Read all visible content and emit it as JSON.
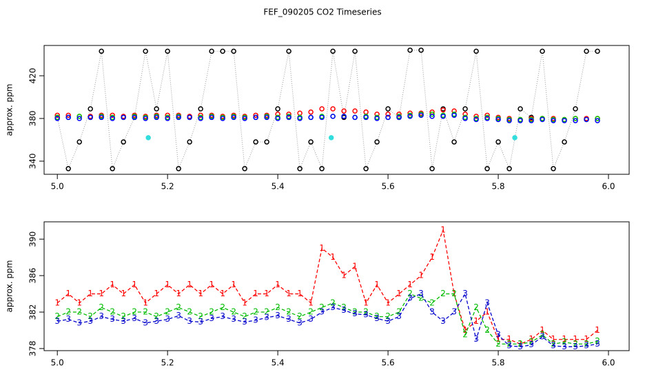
{
  "title": "FEF_090205  CO2 Timeseries",
  "chart_data": [
    {
      "type": "scatter",
      "ylabel": "approx. ppm",
      "x": [
        5.0,
        5.02,
        5.04,
        5.06,
        5.08,
        5.1,
        5.12,
        5.14,
        5.16,
        5.18,
        5.2,
        5.22,
        5.24,
        5.26,
        5.28,
        5.3,
        5.32,
        5.34,
        5.36,
        5.38,
        5.4,
        5.42,
        5.44,
        5.46,
        5.48,
        5.5,
        5.52,
        5.54,
        5.56,
        5.58,
        5.6,
        5.62,
        5.64,
        5.66,
        5.68,
        5.7,
        5.72,
        5.74,
        5.76,
        5.78,
        5.8,
        5.82,
        5.84,
        5.86,
        5.88,
        5.9,
        5.92,
        5.94,
        5.96,
        5.98
      ],
      "xlim": [
        4.976,
        6.0375
      ],
      "xticks": [
        {
          "value": 5,
          "label": "5.0"
        },
        5.2,
        5.4,
        5.6,
        5.8,
        {
          "value": 6,
          "label": "6.0"
        }
      ],
      "ylim": [
        327.7,
        448.4
      ],
      "yticks": [
        340,
        380,
        420
      ],
      "series": [
        {
          "color": "#000000",
          "connect": true,
          "values": [
            381,
            333,
            358,
            389,
            443,
            333,
            358,
            381,
            443,
            389,
            443,
            333,
            358,
            389,
            443,
            443,
            443,
            333,
            358,
            358,
            389,
            443,
            333,
            358,
            333,
            443,
            381,
            443,
            333,
            358,
            389,
            381,
            444,
            444,
            333,
            389,
            358,
            389,
            443,
            333,
            358,
            333,
            389,
            381,
            443,
            333,
            358,
            389,
            443,
            443
          ]
        },
        {
          "color": "#ff0000",
          "values": [
            383,
            383,
            382,
            382,
            383,
            383,
            382,
            383,
            382,
            383,
            383,
            383,
            382,
            383,
            383,
            382,
            383,
            382,
            383,
            383,
            384,
            384,
            385,
            386,
            389,
            389,
            387,
            387,
            386,
            384,
            384,
            384,
            385,
            385,
            386,
            388,
            387,
            384,
            382,
            383,
            381,
            380,
            379,
            380,
            380,
            380,
            379,
            380,
            380,
            380
          ]
        },
        {
          "color": "#00cc00",
          "values": [
            381,
            381,
            382,
            381,
            382,
            381,
            381,
            382,
            381,
            382,
            381,
            382,
            381,
            381,
            382,
            381,
            382,
            381,
            381,
            382,
            381,
            382,
            381,
            381,
            382,
            382,
            382,
            381,
            382,
            381,
            381,
            382,
            383,
            384,
            384,
            383,
            384,
            381,
            380,
            381,
            380,
            379,
            379,
            379,
            380,
            379,
            379,
            380,
            379,
            380
          ]
        },
        {
          "color": "#0000ff",
          "values": [
            380,
            381,
            380,
            381,
            381,
            380,
            381,
            381,
            380,
            381,
            380,
            381,
            381,
            380,
            381,
            380,
            381,
            380,
            381,
            381,
            380,
            381,
            380,
            381,
            381,
            382,
            382,
            381,
            381,
            380,
            381,
            381,
            382,
            383,
            382,
            382,
            383,
            380,
            379,
            380,
            379,
            378,
            378,
            378,
            379,
            378,
            378,
            378,
            379,
            378
          ]
        },
        {
          "color": "#33dddd",
          "x": [
            5.165,
            5.497,
            5.83
          ],
          "values": [
            362,
            362,
            362
          ]
        }
      ]
    },
    {
      "type": "line",
      "ylabel": "approx. ppm",
      "x": [
        5.0,
        5.02,
        5.04,
        5.06,
        5.08,
        5.1,
        5.12,
        5.14,
        5.16,
        5.18,
        5.2,
        5.22,
        5.24,
        5.26,
        5.28,
        5.3,
        5.32,
        5.34,
        5.36,
        5.38,
        5.4,
        5.42,
        5.44,
        5.46,
        5.48,
        5.5,
        5.52,
        5.54,
        5.56,
        5.58,
        5.6,
        5.62,
        5.64,
        5.66,
        5.68,
        5.7,
        5.72,
        5.74,
        5.76,
        5.78,
        5.8,
        5.82,
        5.84,
        5.86,
        5.88,
        5.9,
        5.92,
        5.94,
        5.96,
        5.98
      ],
      "xlim": [
        4.976,
        6.0375
      ],
      "xticks": [
        {
          "value": 5,
          "label": "5.0"
        },
        5.2,
        5.4,
        5.6,
        5.8,
        {
          "value": 6,
          "label": "6.0"
        }
      ],
      "ylim": [
        377.77,
        391.9
      ],
      "yticks": [
        378,
        382,
        386,
        390
      ],
      "series": [
        {
          "color": "#ff0000",
          "symbol": "1",
          "values": [
            383,
            384,
            383,
            384,
            384,
            385,
            384,
            385,
            383,
            384,
            385,
            384,
            385,
            384,
            385,
            384,
            385,
            383,
            384,
            384,
            385,
            384,
            384,
            383,
            389,
            388,
            386,
            387,
            383,
            385,
            383,
            384,
            385,
            386,
            388,
            391,
            384,
            380,
            381,
            382,
            379,
            379,
            378.5,
            379,
            380,
            379,
            379,
            379,
            379,
            380
          ]
        },
        {
          "color": "#00bb00",
          "symbol": "2",
          "values": [
            381.5,
            382,
            382,
            381.5,
            382.5,
            382,
            381.5,
            382,
            382,
            381.5,
            382,
            382.5,
            382,
            381.5,
            382,
            382.5,
            382,
            381.5,
            382,
            382,
            382.5,
            382,
            381.5,
            382,
            382.5,
            383,
            382.5,
            382,
            382,
            381.5,
            381.5,
            382,
            384,
            383.5,
            383,
            384,
            384,
            379.5,
            382.5,
            380,
            378.5,
            378.5,
            378.5,
            378.7,
            379.5,
            378.5,
            378.7,
            378.5,
            378.5,
            378.8
          ]
        },
        {
          "color": "#0000cc",
          "symbol": "3",
          "values": [
            381,
            381.2,
            380.8,
            381,
            381.5,
            381.2,
            381,
            381.3,
            380.8,
            381,
            381.2,
            381.6,
            381,
            380.9,
            381.3,
            381.5,
            381.2,
            380.9,
            381.1,
            381.4,
            381.6,
            381.2,
            380.8,
            381.2,
            382,
            382.5,
            382.2,
            381.8,
            381.7,
            381.3,
            381,
            381.5,
            383.5,
            384,
            382,
            381,
            382,
            384,
            379,
            383,
            379.5,
            378.3,
            378.2,
            378.4,
            379.3,
            378.3,
            378.2,
            378.2,
            378.3,
            378.5
          ]
        }
      ]
    }
  ]
}
